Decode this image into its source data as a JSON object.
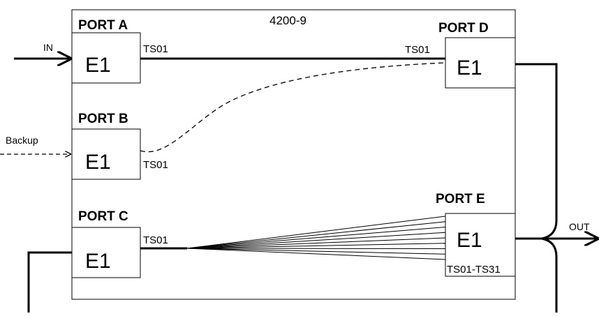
{
  "device": {
    "name": "4200-9"
  },
  "ports": {
    "a": {
      "title": "PORT A",
      "type": "E1",
      "timeslot": "TS01"
    },
    "b": {
      "title": "PORT B",
      "type": "E1",
      "timeslot": "TS01"
    },
    "c": {
      "title": "PORT C",
      "type": "E1",
      "timeslot": "TS01"
    },
    "d": {
      "title": "PORT D",
      "type": "E1",
      "timeslot": "TS01"
    },
    "e": {
      "title": "PORT E",
      "type": "E1",
      "timeslot": "TS01-TS31"
    }
  },
  "signals": {
    "in": "IN",
    "backup": "Backup",
    "out": "OUT"
  },
  "fan_line_count": 9
}
